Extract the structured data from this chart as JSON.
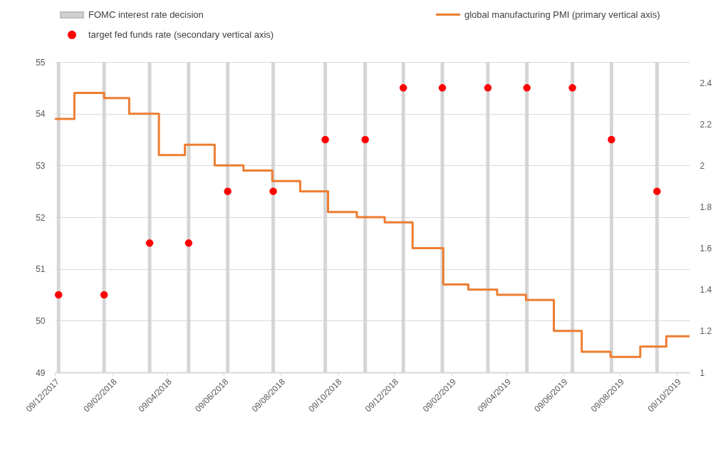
{
  "chart_data": {
    "type": "step",
    "xlim": [
      "2017-12-09",
      "2019-10-23"
    ],
    "xticks": [
      {
        "value": "2017-12-09",
        "label": "09/12/2017"
      },
      {
        "value": "2018-02-09",
        "label": "09/02/2018"
      },
      {
        "value": "2018-04-09",
        "label": "09/04/2018"
      },
      {
        "value": "2018-06-09",
        "label": "09/06/2018"
      },
      {
        "value": "2018-08-09",
        "label": "09/08/2018"
      },
      {
        "value": "2018-10-09",
        "label": "09/10/2018"
      },
      {
        "value": "2018-12-09",
        "label": "09/12/2018"
      },
      {
        "value": "2019-02-09",
        "label": "09/02/2019"
      },
      {
        "value": "2019-04-09",
        "label": "09/04/2019"
      },
      {
        "value": "2019-06-09",
        "label": "09/06/2019"
      },
      {
        "value": "2019-08-09",
        "label": "09/08/2019"
      },
      {
        "value": "2019-10-09",
        "label": "09/10/2019"
      }
    ],
    "ylim": [
      49,
      55
    ],
    "yticks": [
      49,
      50,
      51,
      52,
      53,
      54,
      55
    ],
    "y2lim": [
      1,
      2.5
    ],
    "y2ticks": [
      1,
      1.2,
      1.4,
      1.6,
      1.8,
      2,
      2.2,
      2.4
    ],
    "grid": "y",
    "legend": "top",
    "series": [
      {
        "name": "global manufacturing PMI (primary vertical axis)",
        "color": "#ed7d31",
        "x": [
          "2017-12-09",
          "2017-12-30",
          "2018-01-31",
          "2018-02-27",
          "2018-03-31",
          "2018-04-28",
          "2018-05-30",
          "2018-06-30",
          "2018-07-31",
          "2018-08-30",
          "2018-09-29",
          "2018-10-30",
          "2018-11-29",
          "2018-12-29",
          "2019-01-31",
          "2019-02-27",
          "2019-03-30",
          "2019-04-30",
          "2019-05-30",
          "2019-06-29",
          "2019-07-30",
          "2019-08-31",
          "2019-09-28",
          "2019-10-23"
        ],
        "values": [
          53.9,
          54.4,
          54.3,
          54.0,
          53.2,
          53.4,
          53.0,
          52.9,
          52.7,
          52.5,
          52.1,
          52.0,
          51.9,
          51.4,
          50.7,
          50.6,
          50.5,
          50.4,
          49.8,
          49.4,
          49.3,
          49.5,
          49.7,
          49.7
        ]
      },
      {
        "name": "target fed funds rate (secondary vertical axis)",
        "type": "scatter",
        "axis": "y2",
        "color": "#ff0000",
        "x": [
          "2017-12-13",
          "2018-01-31",
          "2018-03-21",
          "2018-05-02",
          "2018-06-13",
          "2018-08-01",
          "2018-09-26",
          "2018-11-08",
          "2018-12-19",
          "2019-01-30",
          "2019-03-20",
          "2019-05-01",
          "2019-06-19",
          "2019-07-31",
          "2019-09-18"
        ],
        "values": [
          1.375,
          1.375,
          1.625,
          1.625,
          1.875,
          1.875,
          2.125,
          2.125,
          2.375,
          2.375,
          2.375,
          2.375,
          2.375,
          2.125,
          1.875
        ]
      }
    ],
    "ref_lines": [
      {
        "axis": "x",
        "value": "2017-12-13",
        "label": "FOMC interest rate decision",
        "color": "#d0d0d0"
      },
      {
        "axis": "x",
        "value": "2018-01-31",
        "label": null,
        "color": "#d0d0d0"
      },
      {
        "axis": "x",
        "value": "2018-03-21",
        "label": null,
        "color": "#d0d0d0"
      },
      {
        "axis": "x",
        "value": "2018-05-02",
        "label": null,
        "color": "#d0d0d0"
      },
      {
        "axis": "x",
        "value": "2018-06-13",
        "label": null,
        "color": "#d0d0d0"
      },
      {
        "axis": "x",
        "value": "2018-08-01",
        "label": null,
        "color": "#d0d0d0"
      },
      {
        "axis": "x",
        "value": "2018-09-26",
        "label": null,
        "color": "#d0d0d0"
      },
      {
        "axis": "x",
        "value": "2018-11-08",
        "label": null,
        "color": "#d0d0d0"
      },
      {
        "axis": "x",
        "value": "2018-12-19",
        "label": null,
        "color": "#d0d0d0"
      },
      {
        "axis": "x",
        "value": "2019-01-30",
        "label": null,
        "color": "#d0d0d0"
      },
      {
        "axis": "x",
        "value": "2019-03-20",
        "label": null,
        "color": "#d0d0d0"
      },
      {
        "axis": "x",
        "value": "2019-05-01",
        "label": null,
        "color": "#d0d0d0"
      },
      {
        "axis": "x",
        "value": "2019-06-19",
        "label": null,
        "color": "#d0d0d0"
      },
      {
        "axis": "x",
        "value": "2019-07-31",
        "label": null,
        "color": "#d0d0d0"
      },
      {
        "axis": "x",
        "value": "2019-09-18",
        "label": null,
        "color": "#d0d0d0"
      }
    ]
  }
}
